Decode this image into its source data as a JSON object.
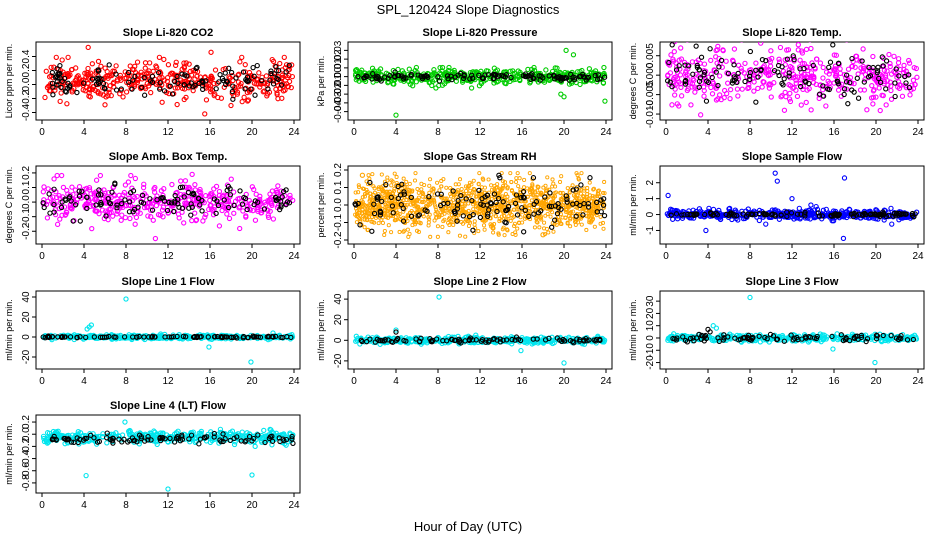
{
  "figure": {
    "title": "SPL_120424  Slope Diagnostics",
    "xlabel": "Hour of Day (UTC)"
  },
  "chart_data": [
    {
      "type": "scatter",
      "title": "Slope Li-820 CO2",
      "ylabel": "Licor ppm per min.",
      "xlim": [
        0,
        24
      ],
      "ylim": [
        -0.45,
        0.55
      ],
      "xticks": [
        0,
        4,
        8,
        12,
        16,
        20,
        24
      ],
      "yticks": [
        -0.4,
        -0.2,
        0.0,
        0.2,
        0.4
      ],
      "yticklabels": [
        "-0.4",
        "-0.2",
        "0.0",
        "0.2",
        "0.4"
      ],
      "series": [
        {
          "color": "#ff0000",
          "n": 420,
          "center": 0.05,
          "spread": 0.13,
          "outliers": [
            [
              4.4,
              0.53
            ],
            [
              16.1,
              0.46
            ],
            [
              15.5,
              -0.42
            ],
            [
              18.0,
              -0.3
            ],
            [
              6.0,
              -0.29
            ]
          ]
        },
        {
          "color": "#000000",
          "n": 120,
          "center": 0.05,
          "spread": 0.1,
          "outliers": [
            [
              6.4,
              0.28
            ],
            [
              20.5,
              0.27
            ]
          ]
        }
      ]
    },
    {
      "type": "scatter",
      "title": "Slope Li-820 Pressure",
      "ylabel": "kPa per min.",
      "xlim": [
        0,
        24
      ],
      "ylim": [
        -0.045,
        0.035
      ],
      "xticks": [
        0,
        4,
        8,
        12,
        16,
        20,
        24
      ],
      "yticks": [
        -0.04,
        -0.03,
        -0.02,
        -0.01,
        0.0,
        0.01,
        0.02,
        0.03
      ],
      "yticklabels": [
        "-0.04",
        "-0.03",
        "-0.02",
        "-0.01",
        "0.00",
        "0.01",
        "0.02",
        "0.03"
      ],
      "series": [
        {
          "color": "#00cc00",
          "n": 420,
          "center": 0.0,
          "spread": 0.004,
          "outliers": [
            [
              4.0,
              -0.044
            ],
            [
              20.2,
              0.03
            ],
            [
              20.9,
              0.025
            ],
            [
              23.9,
              -0.028
            ],
            [
              20.0,
              -0.023
            ],
            [
              7.8,
              -0.013
            ],
            [
              11.2,
              -0.013
            ],
            [
              19.7,
              -0.02
            ]
          ]
        },
        {
          "color": "#000000",
          "n": 120,
          "center": 0.0,
          "spread": 0.002,
          "outliers": []
        }
      ]
    },
    {
      "type": "scatter",
      "title": "Slope Li-820 Temp.",
      "ylabel": "degrees C per min.",
      "xlim": [
        0,
        24
      ],
      "ylim": [
        -0.0105,
        0.0075
      ],
      "xticks": [
        0,
        4,
        8,
        12,
        16,
        20,
        24
      ],
      "yticks": [
        -0.01,
        -0.005,
        0.0,
        0.005
      ],
      "yticklabels": [
        "-0.010",
        "-0.005",
        "0.000",
        "0.005"
      ],
      "series": [
        {
          "color": "#ff00ff",
          "n": 420,
          "center": 0.0,
          "spread": 0.0035,
          "outliers": [
            [
              3.3,
              -0.0102
            ],
            [
              1.4,
              0.007
            ],
            [
              12.6,
              0.0065
            ]
          ]
        },
        {
          "color": "#000000",
          "n": 120,
          "center": 0.0,
          "spread": 0.003,
          "outliers": [
            [
              4.2,
              0.0068
            ]
          ]
        }
      ]
    },
    {
      "type": "scatter",
      "title": "Slope Amb. Box Temp.",
      "ylabel": "degrees C per min.",
      "xlim": [
        0,
        24
      ],
      "ylim": [
        -0.26,
        0.22
      ],
      "xticks": [
        0,
        4,
        8,
        12,
        16,
        20,
        24
      ],
      "yticks": [
        -0.2,
        -0.1,
        0.0,
        0.1,
        0.2
      ],
      "yticklabels": [
        "-0.2",
        "-0.1",
        "0.0",
        "0.1",
        "0.2"
      ],
      "series": [
        {
          "color": "#ff00ff",
          "n": 420,
          "center": 0.0,
          "spread": 0.07,
          "outliers": [
            [
              10.8,
              -0.25
            ],
            [
              5.2,
              0.15
            ],
            [
              14.3,
              0.19
            ]
          ]
        },
        {
          "color": "#000000",
          "n": 120,
          "center": 0.0,
          "spread": 0.05,
          "outliers": []
        }
      ]
    },
    {
      "type": "scatter",
      "title": "Slope Gas Stream RH",
      "ylabel": "percent per min.",
      "xlim": [
        0,
        24
      ],
      "ylim": [
        -0.2,
        0.2
      ],
      "xticks": [
        0,
        4,
        8,
        12,
        16,
        20,
        24
      ],
      "yticks": [
        -0.2,
        -0.1,
        0.0,
        0.1,
        0.2
      ],
      "yticklabels": [
        "-0.2",
        "-0.1",
        "0.0",
        "0.1",
        "0.2"
      ],
      "series": [
        {
          "color": "#ffa500",
          "n": 1200,
          "center": 0.0,
          "spread": 0.07,
          "outliers": [
            [
              0.8,
              0.17
            ],
            [
              18.0,
              -0.17
            ]
          ]
        },
        {
          "color": "#000000",
          "n": 130,
          "center": 0.0,
          "spread": 0.06,
          "outliers": [
            [
              13.8,
              0.17
            ],
            [
              1.7,
              -0.15
            ]
          ]
        }
      ]
    },
    {
      "type": "scatter",
      "title": "Slope Sample Flow",
      "ylabel": "ml/min per min.",
      "xlim": [
        0,
        24
      ],
      "ylim": [
        -1.6,
        2.8
      ],
      "xticks": [
        0,
        4,
        8,
        12,
        16,
        20,
        24
      ],
      "yticks": [
        -1,
        0,
        1,
        2
      ],
      "yticklabels": [
        "-1",
        "0",
        "1",
        "2"
      ],
      "series": [
        {
          "color": "#0000ff",
          "n": 420,
          "center": 0.0,
          "spread": 0.15,
          "outliers": [
            [
              10.4,
              2.6
            ],
            [
              10.6,
              2.1
            ],
            [
              17.0,
              2.3
            ],
            [
              0.2,
              1.2
            ],
            [
              3.8,
              -1.0
            ],
            [
              16.9,
              -1.5
            ],
            [
              21.5,
              -0.6
            ],
            [
              12.0,
              1.0
            ],
            [
              13.8,
              0.6
            ],
            [
              14.3,
              0.5
            ],
            [
              9.5,
              -0.6
            ]
          ]
        },
        {
          "color": "#000000",
          "n": 120,
          "center": 0.0,
          "spread": 0.06,
          "outliers": []
        }
      ]
    },
    {
      "type": "scatter",
      "title": "Slope Line 1 Flow",
      "ylabel": "ml/min per min.",
      "xlim": [
        0,
        24
      ],
      "ylim": [
        -28,
        42
      ],
      "xticks": [
        0,
        4,
        8,
        12,
        16,
        20,
        24
      ],
      "yticks": [
        -20,
        0,
        20,
        40
      ],
      "yticklabels": [
        "-20",
        "0",
        "20",
        "40"
      ],
      "series": [
        {
          "color": "#00e5ee",
          "n": 380,
          "center": 0.0,
          "spread": 1.0,
          "outliers": [
            [
              8.0,
              38
            ],
            [
              4.7,
              12
            ],
            [
              4.3,
              8
            ],
            [
              4.5,
              10
            ],
            [
              15.9,
              -10
            ],
            [
              19.9,
              -25
            ],
            [
              11.3,
              3
            ],
            [
              22.0,
              4
            ]
          ]
        },
        {
          "color": "#000000",
          "n": 90,
          "center": 0.0,
          "spread": 0.4,
          "outliers": []
        }
      ]
    },
    {
      "type": "scatter",
      "title": "Slope Line 2 Flow",
      "ylabel": "ml/min per min.",
      "xlim": [
        0,
        24
      ],
      "ylim": [
        -24,
        44
      ],
      "xticks": [
        0,
        4,
        8,
        12,
        16,
        20,
        24
      ],
      "yticks": [
        -20,
        0,
        20,
        40
      ],
      "yticklabels": [
        "-20",
        "0",
        "20",
        "40"
      ],
      "series": [
        {
          "color": "#00e5ee",
          "n": 380,
          "center": 0.0,
          "spread": 1.5,
          "outliers": [
            [
              8.1,
              42
            ],
            [
              15.9,
              -10
            ],
            [
              20.0,
              -22
            ],
            [
              4.0,
              10
            ],
            [
              11.6,
              5
            ]
          ]
        },
        {
          "color": "#000000",
          "n": 90,
          "center": 0.0,
          "spread": 1.2,
          "outliers": [
            [
              4.0,
              8
            ]
          ]
        }
      ]
    },
    {
      "type": "scatter",
      "title": "Slope Line 3 Flow",
      "ylabel": "ml/min per min.",
      "xlim": [
        0,
        24
      ],
      "ylim": [
        -22,
        35
      ],
      "xticks": [
        0,
        4,
        8,
        12,
        16,
        20,
        24
      ],
      "yticks": [
        -20,
        -10,
        0,
        10,
        20,
        30
      ],
      "yticklabels": [
        "-20",
        "-10",
        "0",
        "10",
        "20",
        "30"
      ],
      "series": [
        {
          "color": "#00e5ee",
          "n": 380,
          "center": 0.0,
          "spread": 1.3,
          "outliers": [
            [
              8.0,
              33
            ],
            [
              4.5,
              10
            ],
            [
              4.8,
              8
            ],
            [
              15.9,
              -9
            ],
            [
              19.9,
              -20
            ]
          ]
        },
        {
          "color": "#000000",
          "n": 90,
          "center": 0.0,
          "spread": 1.2,
          "outliers": [
            [
              4.0,
              7
            ],
            [
              4.2,
              5
            ]
          ]
        }
      ]
    },
    {
      "type": "scatter",
      "title": "Slope Line 4 (LT) Flow",
      "ylabel": "ml/min per min.",
      "xlim": [
        0,
        24
      ],
      "ylim": [
        -0.9,
        0.25
      ],
      "xticks": [
        0,
        4,
        8,
        12,
        16,
        20,
        24
      ],
      "yticks": [
        -0.8,
        -0.6,
        -0.4,
        -0.2,
        0.0,
        0.2
      ],
      "yticklabels": [
        "-0.8",
        "-0.6",
        "-0.4",
        "-0.2",
        "0.0",
        "0.2"
      ],
      "series": [
        {
          "color": "#00e5ee",
          "n": 400,
          "center": -0.05,
          "spread": 0.05,
          "outliers": [
            [
              4.2,
              -0.68
            ],
            [
              12.0,
              -0.9
            ],
            [
              20.0,
              -0.67
            ],
            [
              7.9,
              0.2
            ],
            [
              20.3,
              -0.2
            ]
          ]
        },
        {
          "color": "#000000",
          "n": 100,
          "center": -0.08,
          "spread": 0.04,
          "outliers": [
            [
              23.9,
              -0.15
            ]
          ]
        }
      ]
    }
  ]
}
